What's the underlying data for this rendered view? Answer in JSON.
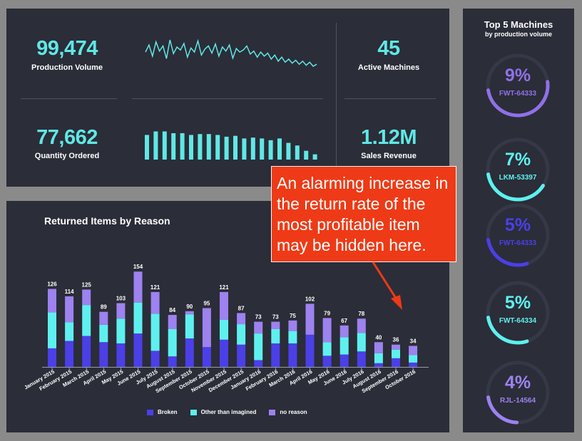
{
  "kpis": {
    "production_volume": {
      "value": "99,474",
      "label": "Production Volume"
    },
    "quantity_ordered": {
      "value": "77,662",
      "label": "Quantity Ordered"
    },
    "active_machines": {
      "value": "45",
      "label": "Active Machines"
    },
    "sales_revenue": {
      "value": "1.12M",
      "label": "Sales Revenue"
    }
  },
  "sparkline": {
    "values": [
      58,
      72,
      50,
      78,
      60,
      70,
      45,
      82,
      55,
      68,
      62,
      75,
      48,
      66,
      58,
      80,
      52,
      64,
      70,
      56,
      74,
      50,
      68,
      60,
      72,
      46,
      65,
      58,
      62,
      70,
      54,
      60,
      48,
      58,
      50,
      56,
      44,
      52,
      40,
      48,
      38,
      44,
      36,
      42,
      34,
      40,
      32,
      38,
      30,
      34
    ]
  },
  "mini_bars": {
    "values": [
      28,
      32,
      32,
      30,
      30,
      28,
      29,
      29,
      28,
      26,
      27,
      24,
      25,
      24,
      22,
      24,
      19,
      16,
      10,
      6
    ]
  },
  "chart_data": {
    "type": "bar",
    "title": "Returned Items by Reason",
    "categories": [
      "January 2015",
      "February 2015",
      "March 2015",
      "April 2015",
      "May 2015",
      "June 2015",
      "July 2015",
      "August 2015",
      "September 2015",
      "October 2015",
      "November 2015",
      "December 2015",
      "January 2016",
      "February 2016",
      "March 2016",
      "April 2016",
      "May 2016",
      "June 2016",
      "July 2016",
      "August 2016",
      "September 2016",
      "October 2016"
    ],
    "totals": [
      126,
      114,
      125,
      89,
      103,
      154,
      121,
      84,
      90,
      95,
      121,
      87,
      73,
      73,
      75,
      102,
      79,
      67,
      78,
      40,
      36,
      34
    ],
    "stacked": true,
    "series": [
      {
        "name": "Broken",
        "color": "#4b3fe8",
        "values": [
          30,
          42,
          50,
          40,
          38,
          54,
          26,
          17,
          46,
          32,
          44,
          36,
          11,
          38,
          38,
          52,
          18,
          20,
          25,
          6,
          14,
          7
        ]
      },
      {
        "name": "Other than imagined",
        "color": "#5ef0ef",
        "values": [
          58,
          30,
          50,
          28,
          40,
          50,
          60,
          44,
          39,
          0,
          32,
          33,
          43,
          23,
          20,
          0,
          22,
          28,
          30,
          16,
          14,
          12
        ]
      },
      {
        "name": "no reason",
        "color": "#9d82f0",
        "values": [
          38,
          42,
          25,
          21,
          25,
          50,
          35,
          23,
          5,
          63,
          45,
          18,
          19,
          12,
          17,
          50,
          39,
          19,
          23,
          18,
          8,
          15
        ]
      }
    ],
    "ylim": [
      0,
      160
    ],
    "legend": "bottom"
  },
  "machines": {
    "title": "Top 5 Machines",
    "subtitle": "by production volume",
    "items": [
      {
        "pct": "9%",
        "name": "FWT-64333",
        "color": "#9070e8",
        "fraction": 0.9
      },
      {
        "pct": "7%",
        "name": "LKM-53397",
        "color": "#5ef0ef",
        "fraction": 0.7
      },
      {
        "pct": "5%",
        "name": "FWT-64333",
        "color": "#4b3fe8",
        "fraction": 0.5
      },
      {
        "pct": "5%",
        "name": "FWT-64334",
        "color": "#5ef0ef",
        "fraction": 0.5
      },
      {
        "pct": "4%",
        "name": "RJL-14564",
        "color": "#9d82f0",
        "fraction": 0.4
      }
    ]
  },
  "callout": {
    "text": "An alarming increase in\nthe return rate of the\nmost profitable item\nmay be hidden here."
  }
}
